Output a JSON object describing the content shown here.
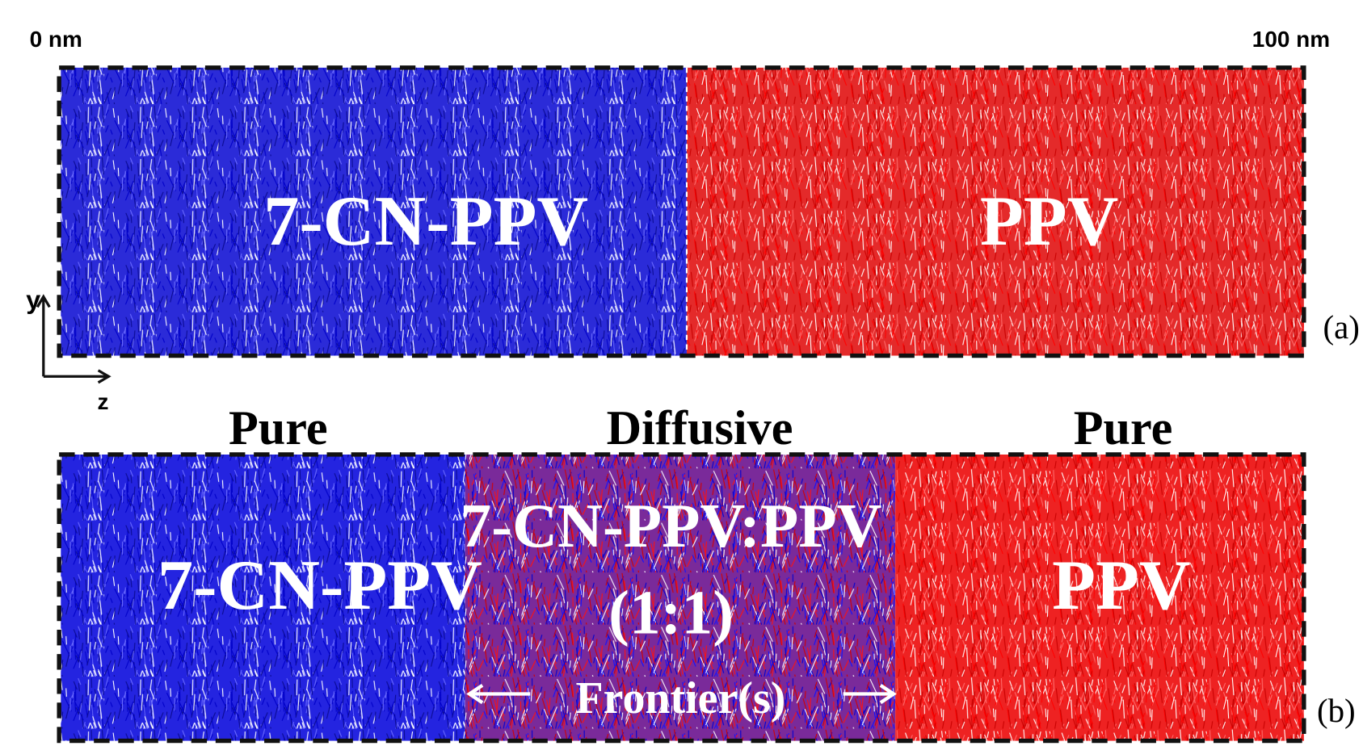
{
  "scale": {
    "start": "0 nm",
    "end": "100 nm"
  },
  "axes": {
    "y": "y",
    "z": "z"
  },
  "panel_a": {
    "left_label": "7-CN-PPV",
    "right_label": "PPV",
    "tag": "(a)"
  },
  "panel_b": {
    "region_headers": [
      "Pure",
      "Diffusive",
      "Pure"
    ],
    "left_label": "7-CN-PPV",
    "middle_label": "7-CN-PPV:PPV",
    "middle_ratio": "(1:1)",
    "right_label": "PPV",
    "frontier_label": "Frontier(s)",
    "tag": "(b)"
  }
}
